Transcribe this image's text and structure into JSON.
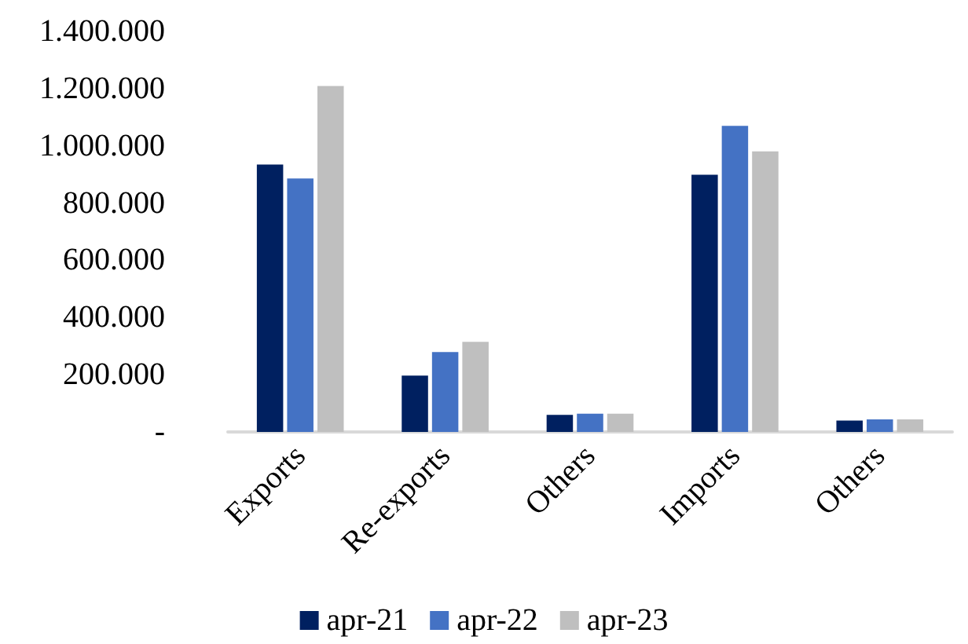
{
  "chart_data": {
    "type": "bar",
    "categories": [
      "Exports",
      "Re-exports",
      "Others",
      "Imports",
      "Others"
    ],
    "series": [
      {
        "name": "apr-21",
        "color": "#002060",
        "values": [
          935000,
          197000,
          60000,
          899000,
          40000
        ]
      },
      {
        "name": "apr-22",
        "color": "#4472c4",
        "values": [
          886000,
          279000,
          64000,
          1070000,
          44000
        ]
      },
      {
        "name": "apr-23",
        "color": "#bfbfbf",
        "values": [
          1209000,
          315000,
          64000,
          981000,
          44000
        ]
      }
    ],
    "ylim": [
      0,
      1400000
    ],
    "yticks": [
      {
        "value": 0,
        "label": "-"
      },
      {
        "value": 200000,
        "label": "200.000"
      },
      {
        "value": 400000,
        "label": "400.000"
      },
      {
        "value": 600000,
        "label": "600.000"
      },
      {
        "value": 800000,
        "label": "800.000"
      },
      {
        "value": 1000000,
        "label": "1.000.000"
      },
      {
        "value": 1200000,
        "label": "1.200.000"
      },
      {
        "value": 1400000,
        "label": "1.400.000"
      }
    ],
    "grid": false,
    "legend": "bottom"
  }
}
